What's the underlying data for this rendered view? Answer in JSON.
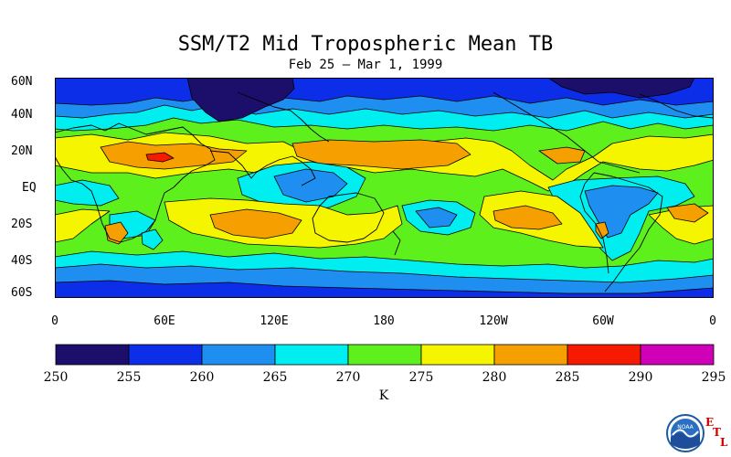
{
  "title": "SSM/T2 Mid Tropospheric Mean TB",
  "subtitle": "Feb 25 – Mar 1, 1999",
  "map": {
    "projection": "equirectangular",
    "lat_range": [
      -60,
      60
    ],
    "lon_range": [
      0,
      360
    ],
    "lat_labels": [
      "60N",
      "40N",
      "20N",
      "EQ",
      "20S",
      "40S",
      "60S"
    ],
    "lon_labels": [
      "0",
      "60E",
      "120E",
      "180",
      "120W",
      "60W",
      "0"
    ],
    "field": "mid-tropospheric brightness temperature",
    "features": [
      "coastlines",
      "country borders",
      "filled contours"
    ]
  },
  "colorbar": {
    "tick_labels": [
      "250",
      "255",
      "260",
      "265",
      "270",
      "275",
      "280",
      "285",
      "290",
      "295"
    ],
    "unit": "K",
    "bins": [
      {
        "from": 250,
        "to": 255,
        "color": "#1c0e6b"
      },
      {
        "from": 255,
        "to": 260,
        "color": "#0d2ee8"
      },
      {
        "from": 260,
        "to": 265,
        "color": "#1e8ff0"
      },
      {
        "from": 265,
        "to": 270,
        "color": "#00eef0"
      },
      {
        "from": 270,
        "to": 275,
        "color": "#5ef01c"
      },
      {
        "from": 275,
        "to": 280,
        "color": "#f5f500"
      },
      {
        "from": 280,
        "to": 285,
        "color": "#f5a000"
      },
      {
        "from": 285,
        "to": 290,
        "color": "#f51a00"
      },
      {
        "from": 290,
        "to": 295,
        "color": "#d000b8"
      }
    ]
  },
  "logo": {
    "name": "noaa-logo",
    "text": "NOAA",
    "letters": [
      "E",
      "T",
      "L"
    ]
  }
}
